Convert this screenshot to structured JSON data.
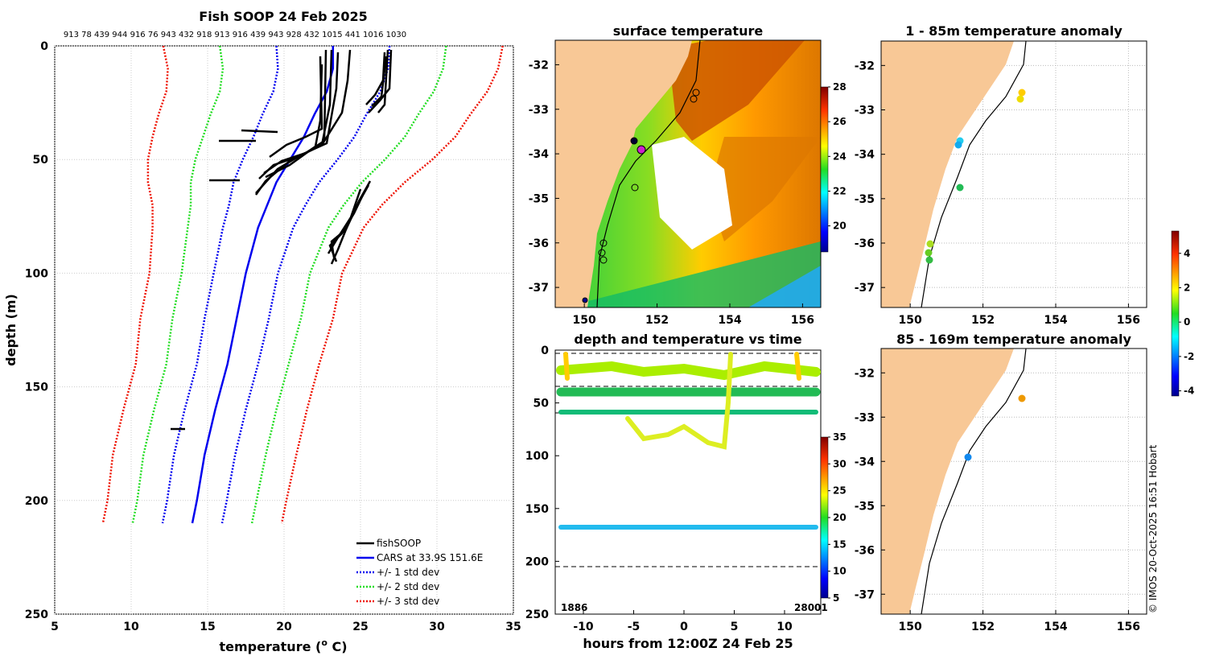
{
  "profile_chart": {
    "type": "line",
    "title": "Fish SOOP 24 Feb 2025",
    "top_labels": "913 78 439 944 916 76 943 432 918 913 916 439 943 928 432 1015 441 1016 1030",
    "xlabel": "temperature (",
    "xlabel_sup": "o",
    "xlabel_end": " C)",
    "ylabel": "depth (m)",
    "xlim": [
      5,
      35
    ],
    "ylim": [
      250,
      0
    ],
    "xticks": [
      "5",
      "10",
      "15",
      "20",
      "25",
      "30",
      "35"
    ],
    "yticks": [
      "0",
      "50",
      "100",
      "150",
      "200",
      "250"
    ],
    "legend": [
      "fishSOOP",
      "CARS at 33.9S 151.6E",
      "+/- 1 std dev",
      "+/- 2 std dev",
      "+/- 3 std dev"
    ],
    "colors": {
      "fish": "#000000",
      "cars": "#0000ee",
      "std1": "#0000ee",
      "std2": "#22dd22",
      "std3": "#ee1100"
    },
    "cars_depth": [
      0,
      10,
      20,
      30,
      40,
      50,
      60,
      70,
      80,
      90,
      100,
      120,
      140,
      160,
      180,
      200,
      210
    ],
    "cars_mean": [
      23.2,
      23.2,
      22.8,
      22.0,
      21.3,
      20.4,
      19.5,
      18.9,
      18.3,
      17.9,
      17.5,
      16.9,
      16.3,
      15.5,
      14.8,
      14.3,
      14.0
    ],
    "std_width": [
      3.7,
      3.6,
      3.5,
      3.4,
      3.3,
      3.1,
      2.8,
      2.5,
      2.3,
      2.2,
      2.1,
      2.1,
      2.0,
      2.0,
      2.0,
      1.95,
      1.95
    ]
  },
  "sst_map": {
    "title": "surface temperature",
    "xticks": [
      "150",
      "152",
      "154",
      "156"
    ],
    "yticks": [
      "-32",
      "-33",
      "-34",
      "-35",
      "-36",
      "-37"
    ],
    "colorbar_ticks": [
      "28",
      "26",
      "24",
      "22",
      "20"
    ]
  },
  "time_chart": {
    "type": "scatter",
    "title": "depth and temperature vs time",
    "xlabel": "hours from 12:00Z 24 Feb 25",
    "xticks": [
      "-10",
      "-5",
      "0",
      "5",
      "10"
    ],
    "yticks": [
      "0",
      "50",
      "100",
      "150",
      "200",
      "250"
    ],
    "colorbar_ticks": [
      "35",
      "30",
      "25",
      "20",
      "15",
      "10",
      "5"
    ],
    "bottom_left_labels": "1886",
    "bottom_right_labels": "28001"
  },
  "anom_map_1": {
    "title": "1 - 85m temperature anomaly",
    "xticks": [
      "150",
      "152",
      "154",
      "156"
    ],
    "yticks": [
      "-32",
      "-33",
      "-34",
      "-35",
      "-36",
      "-37"
    ]
  },
  "anom_map_2": {
    "title": "85 - 169m temperature anomaly",
    "xticks": [
      "150",
      "152",
      "154",
      "156"
    ],
    "yticks": [
      "-32",
      "-33",
      "-34",
      "-35",
      "-36",
      "-37"
    ]
  },
  "anom_colorbar_ticks": [
    "4",
    "2",
    "0",
    "-2",
    "-4"
  ],
  "credit": "© IMOS 20-Oct-2025 16:51 Hobart"
}
